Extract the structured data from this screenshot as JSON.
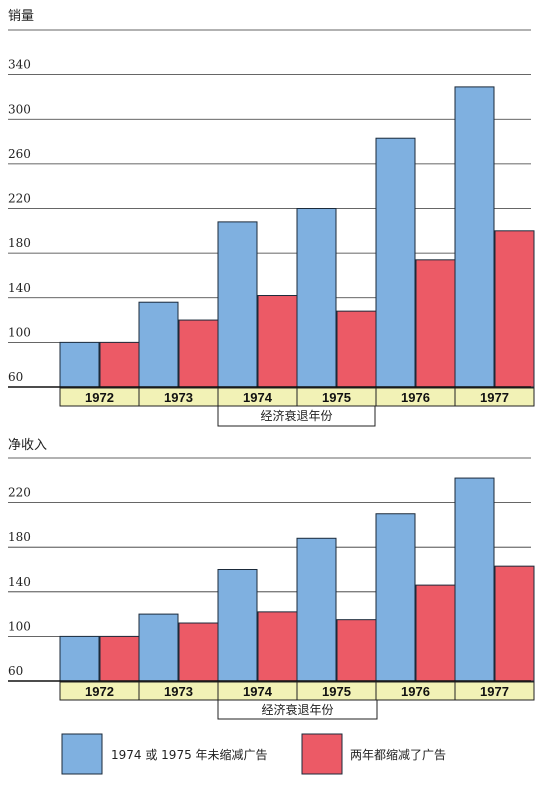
{
  "colors": {
    "blue": "#7fb0e0",
    "red": "#ec5a66",
    "yearbox": "#f2f2b6",
    "bar_stroke": "#1b2a3a"
  },
  "chart_data": [
    {
      "type": "bar",
      "title": "销量",
      "categories": [
        "1972",
        "1973",
        "1974",
        "1975",
        "1976",
        "1977"
      ],
      "yticks": [
        60,
        100,
        140,
        180,
        220,
        260,
        300,
        340
      ],
      "ylim": [
        60,
        380
      ],
      "grid": true,
      "series": [
        {
          "name": "1974 或 1975 年未缩减广告",
          "values": [
            100,
            136,
            208,
            220,
            283,
            329
          ]
        },
        {
          "name": "两年都缩减了广告",
          "values": [
            100,
            120,
            142,
            128,
            174,
            200
          ]
        }
      ],
      "annotation": "经济衰退年份"
    },
    {
      "type": "bar",
      "title": "净收入",
      "categories": [
        "1972",
        "1973",
        "1974",
        "1975",
        "1976",
        "1977"
      ],
      "yticks": [
        60,
        100,
        140,
        180,
        220
      ],
      "ylim": [
        60,
        260
      ],
      "grid": true,
      "series": [
        {
          "name": "1974 或 1975 年未缩减广告",
          "values": [
            100,
            120,
            160,
            188,
            210,
            242
          ]
        },
        {
          "name": "两年都缩减了广告",
          "values": [
            100,
            112,
            122,
            115,
            146,
            163
          ]
        }
      ],
      "annotation": "经济衰退年份"
    }
  ],
  "legend": {
    "blue_label": "1974 或 1975 年未缩减广告",
    "red_label": "两年都缩减了广告"
  }
}
